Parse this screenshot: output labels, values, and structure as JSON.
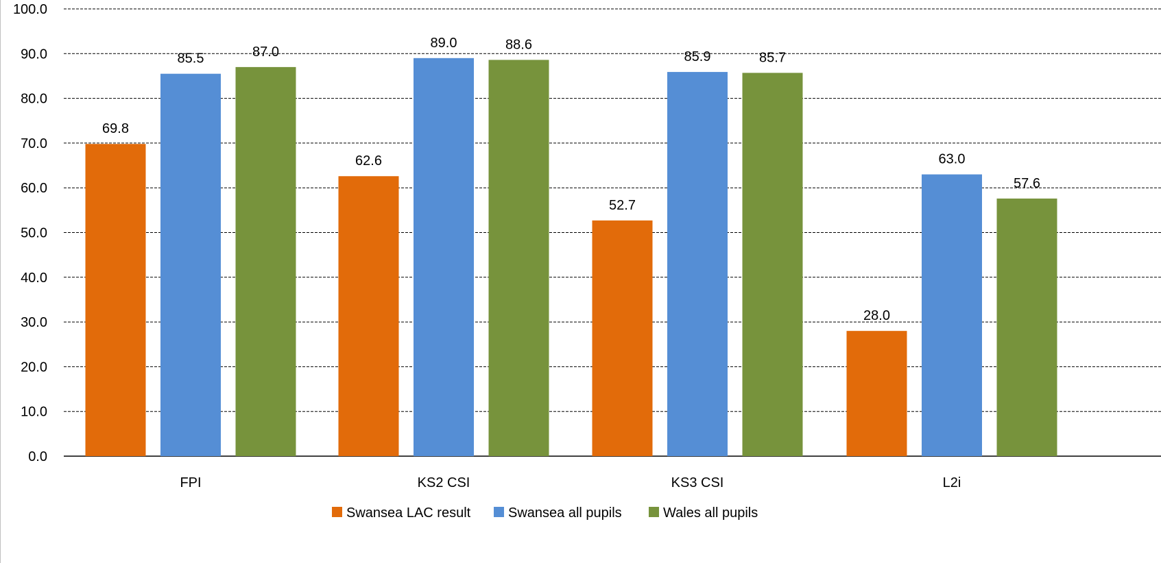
{
  "chart_data": {
    "type": "bar",
    "categories": [
      "FPI",
      "KS2 CSI",
      "KS3 CSI",
      "L2i"
    ],
    "series": [
      {
        "name": "Swansea LAC result",
        "color": "#e26b0a",
        "values": [
          69.8,
          62.6,
          52.7,
          28.0
        ]
      },
      {
        "name": "Swansea all pupils",
        "color": "#558ed5",
        "values": [
          85.5,
          89.0,
          85.9,
          63.0
        ]
      },
      {
        "name": "Wales all pupils",
        "color": "#77933c",
        "values": [
          87.0,
          88.6,
          85.7,
          57.6
        ]
      }
    ],
    "ylim": [
      0,
      100
    ],
    "yticks": [
      "0.0",
      "10.0",
      "20.0",
      "30.0",
      "40.0",
      "50.0",
      "60.0",
      "70.0",
      "80.0",
      "90.0",
      "100.0"
    ],
    "grid": "dashed-horizontal",
    "legend_position": "bottom",
    "value_format": "one-decimal"
  }
}
